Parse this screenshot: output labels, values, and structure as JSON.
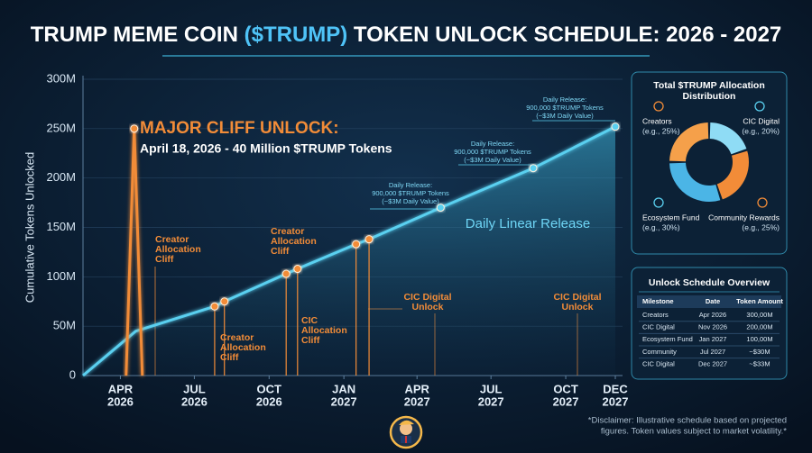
{
  "header": {
    "title": [
      "TRUMP MEME COIN ",
      "($TRUMP)",
      " TOKEN UNLOCK SCHEDULE: 2026 - 2027"
    ]
  },
  "chart_data": [
    {
      "type": "line",
      "y_label": "Cumulative Tokens Unlocked",
      "xlim": [
        "2026-02-14",
        "2027-12-01"
      ],
      "xticks": [
        {
          "value": "2026-04",
          "label": [
            "APR",
            "2026"
          ]
        },
        {
          "value": "2026-07",
          "label": [
            "JUL",
            "2026"
          ]
        },
        {
          "value": "2026-10",
          "label": [
            "OCT",
            "2026"
          ]
        },
        {
          "value": "2027-01",
          "label": [
            "JAN",
            "2027"
          ]
        },
        {
          "value": "2027-04",
          "label": [
            "APR",
            "2027"
          ]
        },
        {
          "value": "2027-07",
          "label": [
            "JUL",
            "2027"
          ]
        },
        {
          "value": "2027-10",
          "label": [
            "OCT",
            "2027"
          ]
        },
        {
          "value": "2027-12",
          "label": [
            "DEC",
            "2027"
          ]
        }
      ],
      "ylim": [
        0,
        300
      ],
      "yticks": [
        0,
        {
          "value": 50,
          "label": "50M"
        },
        {
          "value": 100,
          "label": "100M"
        },
        {
          "value": 150,
          "label": "150M"
        },
        {
          "value": 200,
          "label": "200M"
        },
        {
          "value": 250,
          "label": "250M"
        },
        {
          "value": 300,
          "label": "300M"
        }
      ],
      "grid": true,
      "series": [
        {
          "color": "#5ad0f0",
          "area": true,
          "x": [
            "2026-02-14",
            "2026-04-20",
            "2026-07-26",
            "2026-08-07",
            "2026-10-22",
            "2026-11-05",
            "2027-01-16",
            "2027-02-01",
            "2027-04-30",
            "2027-08-22",
            "2027-12-01"
          ],
          "values": [
            0,
            45,
            70,
            75,
            103,
            108,
            133,
            138,
            170,
            210,
            252
          ],
          "point_colors": [
            null,
            null,
            "#f28c38",
            "#f28c38",
            "#f28c38",
            "#f28c38",
            "#f28c38",
            "#f28c38",
            "#5ad0f0",
            "#5ad0f0",
            "#5ad0f0"
          ]
        },
        {
          "color": "#f28c38",
          "area": false,
          "x": [
            "2026-04-08",
            "2026-04-18",
            "2026-04-28"
          ],
          "values": [
            0,
            250,
            0
          ],
          "point_colors": [
            null,
            "#f28c38",
            null
          ]
        }
      ],
      "annotations": [
        [
          "MAJOR CLIFF UNLOCK:"
        ],
        [
          "April 18, 2026 - 40 Million $TRUMP Tokens"
        ],
        [
          "Creator",
          "Allocation",
          "Cliff"
        ],
        [
          "Creator",
          "Allocation",
          "Cliff"
        ],
        [
          "Creator",
          "Allocation",
          "Cliff"
        ],
        [
          "CIC",
          "Allocation",
          "Cliff"
        ],
        [
          "CIC Digital",
          "Unlock"
        ],
        [
          "CIC Digital",
          "Unlock"
        ],
        [
          "Daily Release:",
          "900,000 $TRUMP Tokens",
          "(~$3M Daily Value)"
        ],
        [
          "Daily Release:",
          "900,000 $TRUMP Tokens",
          "(~$3M Daily Value)"
        ],
        [
          "Daily Release:",
          "900,000 $TRUMP Tokens",
          "(~$3M Daily Value)"
        ],
        [
          "Daily Linear Release"
        ]
      ]
    },
    {
      "type": "pie",
      "title": [
        "Total $TRUMP Allocation",
        "Distribution"
      ],
      "categories": [
        "CIC Digital",
        "Community Rewards",
        "Ecosystem Fund",
        "Creators"
      ],
      "values": [
        20,
        25,
        30,
        25
      ],
      "value_labels": [
        "(e.g., 20%)",
        "(e.g., 25%)",
        "(e.g., 30%)",
        "(e.g., 25%)"
      ],
      "colors": [
        "#8fdcf5",
        "#f28c38",
        "#4bb5e6",
        "#f5a04a"
      ]
    }
  ],
  "table": {
    "title": "Unlock Schedule Overview",
    "columns": [
      "Milestone",
      "Date",
      "Token Amount"
    ],
    "rows": [
      [
        "Creators",
        "Apr 2026",
        "300,00M"
      ],
      [
        "CIC Digital",
        "Nov 2026",
        "200,00M"
      ],
      [
        "Ecosystem Fund",
        "Jan 2027",
        "100,00M"
      ],
      [
        "Community",
        "Jul 2027",
        "~$30M"
      ],
      [
        "CIC Digital",
        "Dec 2027",
        "~$33M"
      ]
    ]
  },
  "footer": {
    "disclaimer": [
      "*Disclaimer: Illustrative schedule based on projected",
      "figures. Token values subject to market volatility.*"
    ]
  }
}
